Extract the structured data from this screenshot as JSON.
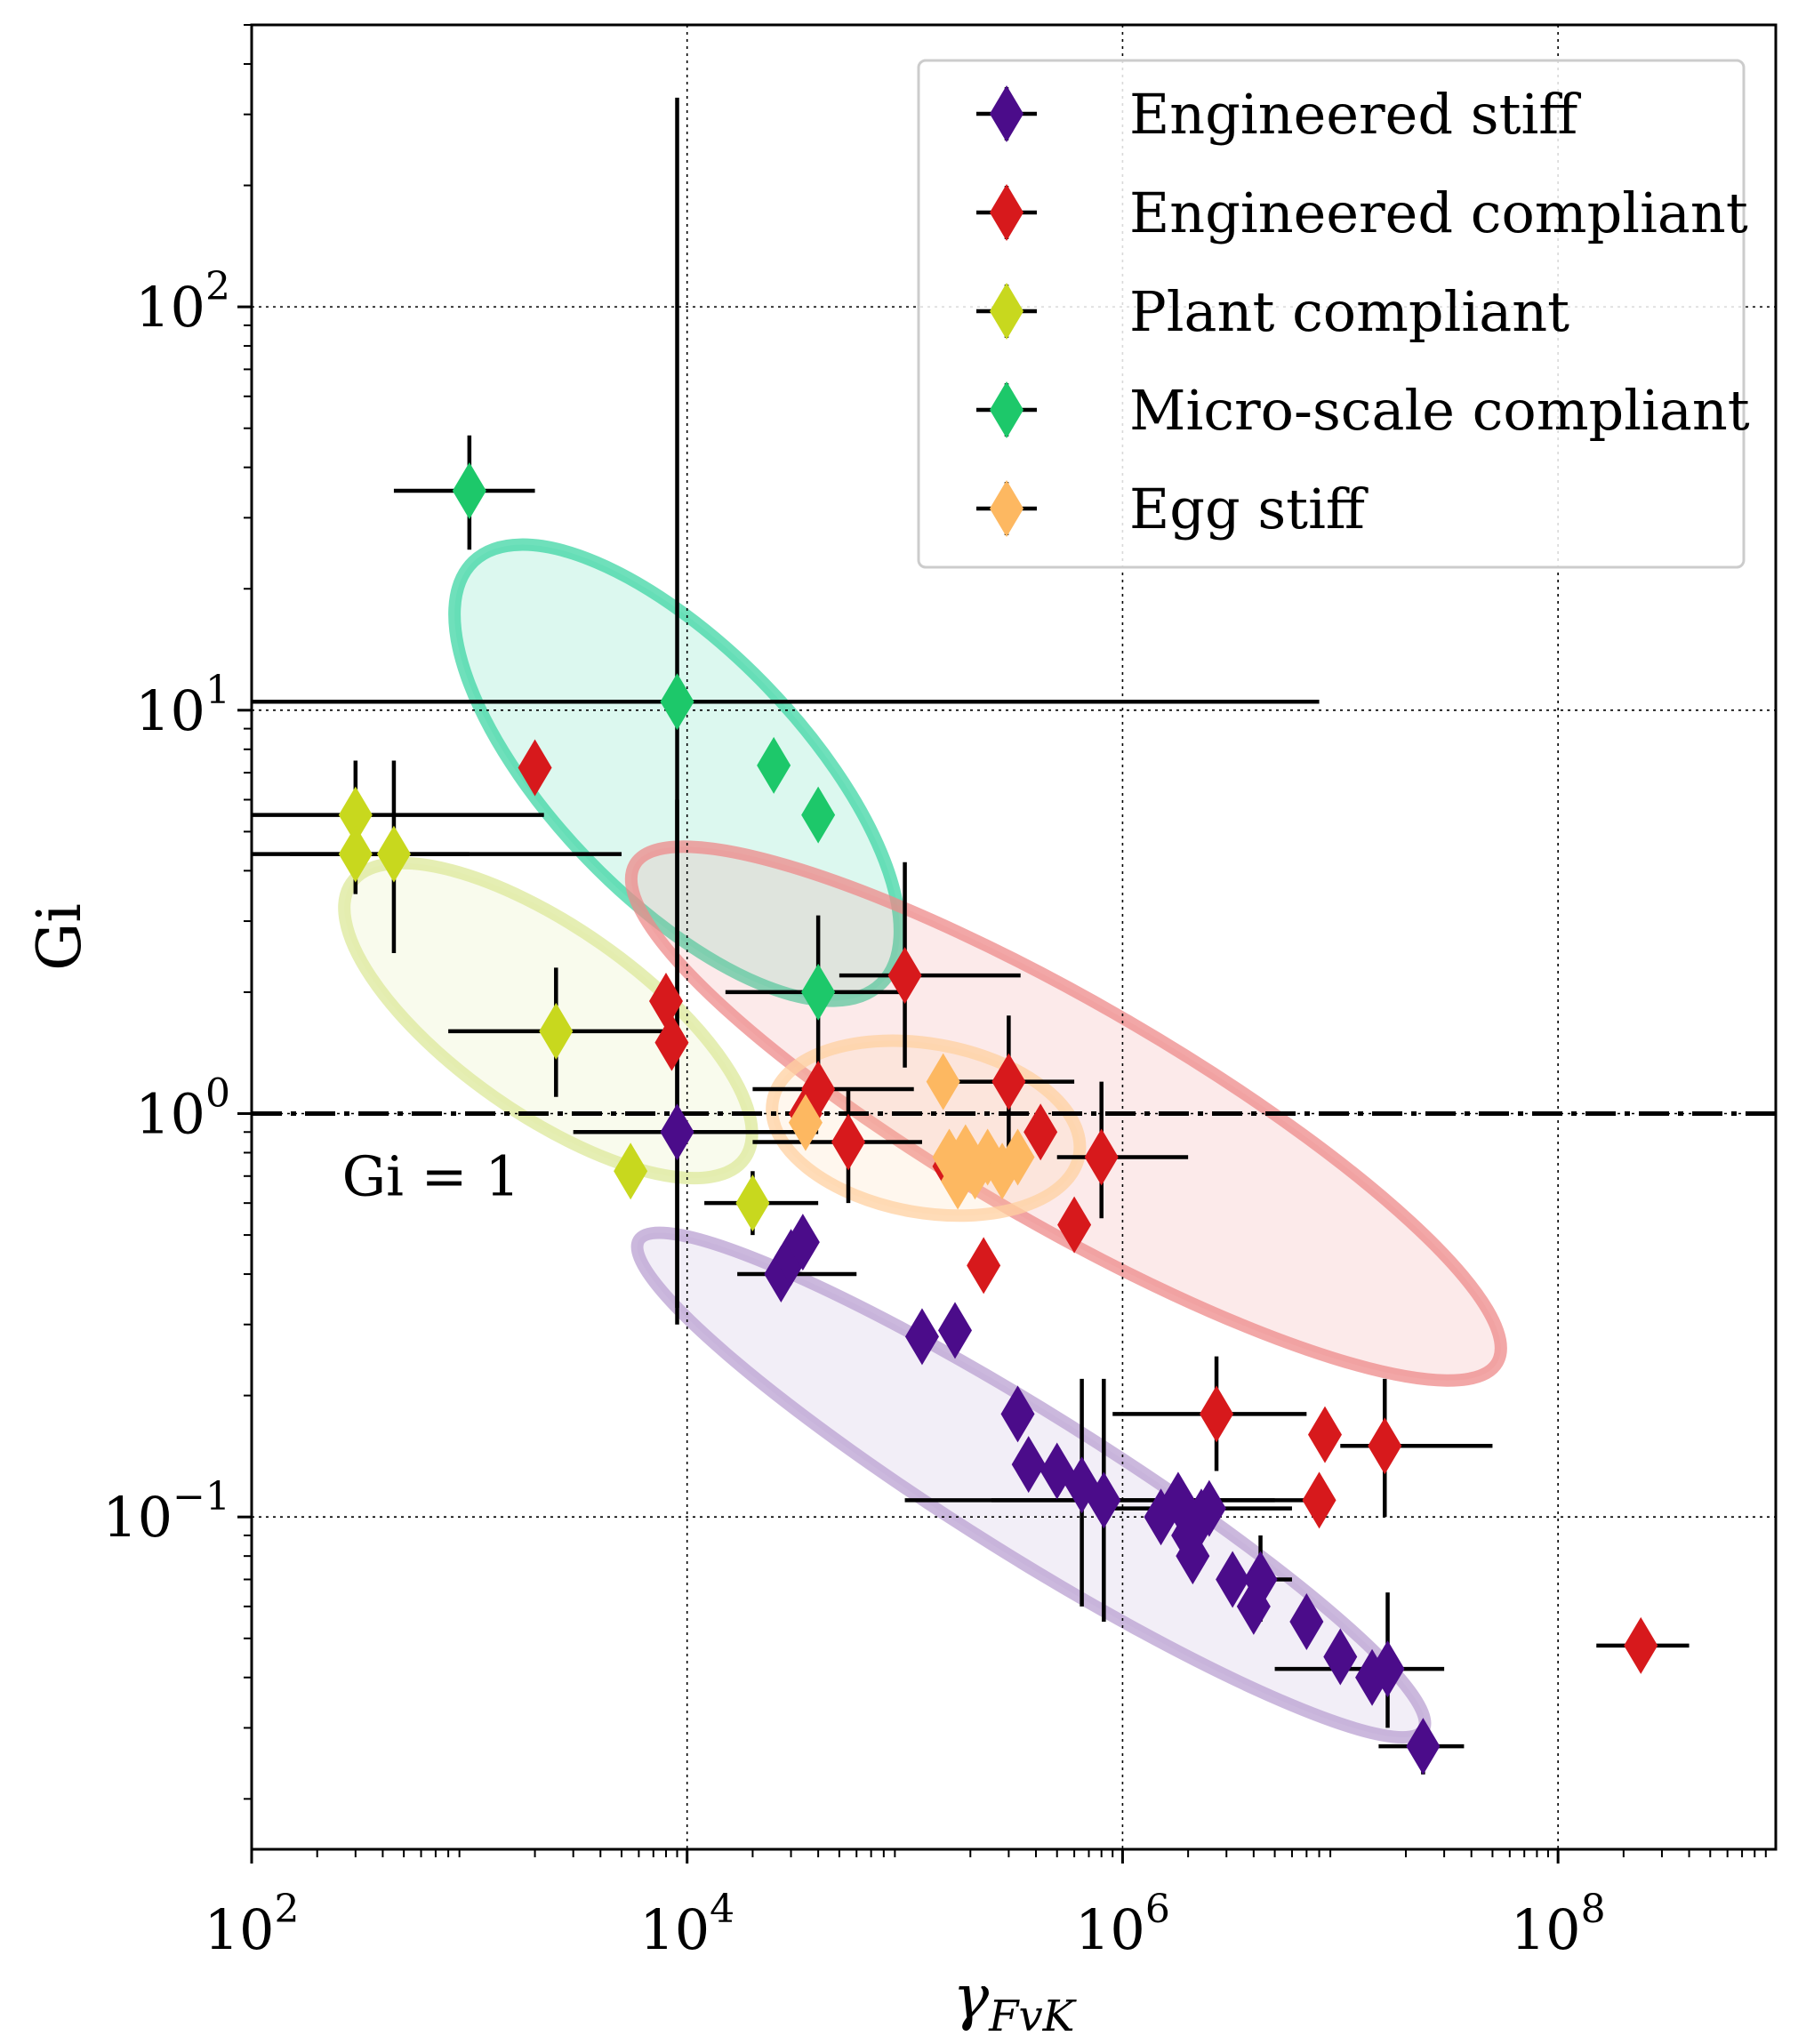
{
  "chart_data": {
    "type": "scatter",
    "title": "",
    "xlabel": "γ_FvK",
    "ylabel": "Gi",
    "xscale": "log",
    "yscale": "log",
    "xlim": [
      100,
      1000000000
    ],
    "ylim": [
      0.015,
      500
    ],
    "grid": "dotted at major decades",
    "x_ticks": [
      {
        "value": 100,
        "base": "10",
        "exp": "2"
      },
      {
        "value": 10000,
        "base": "10",
        "exp": "4"
      },
      {
        "value": 1000000,
        "base": "10",
        "exp": "6"
      },
      {
        "value": 100000000,
        "base": "10",
        "exp": "8"
      }
    ],
    "y_ticks": [
      {
        "value": 0.1,
        "base": "10",
        "exp": "−1"
      },
      {
        "value": 1,
        "base": "10",
        "exp": "0"
      },
      {
        "value": 10,
        "base": "10",
        "exp": "1"
      },
      {
        "value": 100,
        "base": "10",
        "exp": "2"
      }
    ],
    "reference_line": {
      "y": 1,
      "style": "dash-dot",
      "label": "Gi = 1"
    },
    "legend_position": "top-right",
    "series": [
      {
        "name": "Engineered stiff",
        "color": "#4B0C8A",
        "points": [
          {
            "x": 9000,
            "y": 0.9,
            "xerr": [
              3000,
              40000
            ],
            "yerr": [
              0.3,
              6
            ]
          },
          {
            "x": 27000,
            "y": 0.4,
            "xerr": [
              17000,
              60000
            ]
          },
          {
            "x": 30000,
            "y": 0.44
          },
          {
            "x": 34000,
            "y": 0.48
          },
          {
            "x": 120000,
            "y": 0.28
          },
          {
            "x": 170000,
            "y": 0.29
          },
          {
            "x": 330000,
            "y": 0.18
          },
          {
            "x": 370000,
            "y": 0.135
          },
          {
            "x": 500000,
            "y": 0.13
          },
          {
            "x": 650000,
            "y": 0.12,
            "yerr": [
              0.06,
              0.22
            ]
          },
          {
            "x": 820000,
            "y": 0.11,
            "xerr": [
              100000,
              5000000
            ],
            "yerr": [
              0.055,
              0.22
            ]
          },
          {
            "x": 1500000,
            "y": 0.1
          },
          {
            "x": 1800000,
            "y": 0.11,
            "xerr": [
              250000,
              8000000
            ]
          },
          {
            "x": 2000000,
            "y": 0.09
          },
          {
            "x": 2300000,
            "y": 0.1
          },
          {
            "x": 2500000,
            "y": 0.105,
            "xerr": [
              800000,
              6000000
            ]
          },
          {
            "x": 2100000,
            "y": 0.08
          },
          {
            "x": 3200000,
            "y": 0.07
          },
          {
            "x": 4000000,
            "y": 0.06
          },
          {
            "x": 4300000,
            "y": 0.07,
            "xerr": [
              3000000,
              6000000
            ],
            "yerr": [
              0.055,
              0.09
            ]
          },
          {
            "x": 7000000,
            "y": 0.055
          },
          {
            "x": 10000000,
            "y": 0.045
          },
          {
            "x": 14000000,
            "y": 0.04
          },
          {
            "x": 16500000,
            "y": 0.042,
            "xerr": [
              5000000,
              30000000
            ],
            "yerr": [
              0.03,
              0.065
            ]
          },
          {
            "x": 24000000,
            "y": 0.027,
            "xerr": [
              15000000,
              37000000
            ],
            "yerr": [
              0.023,
              0.031
            ]
          }
        ]
      },
      {
        "name": "Engineered compliant",
        "color": "#D7191C",
        "points": [
          {
            "x": 2000,
            "y": 7.2
          },
          {
            "x": 8000,
            "y": 1.9
          },
          {
            "x": 8500,
            "y": 1.5
          },
          {
            "x": 35000,
            "y": 1.0
          },
          {
            "x": 40000,
            "y": 1.15,
            "xerr": [
              20000,
              110000
            ]
          },
          {
            "x": 55000,
            "y": 0.85,
            "xerr": [
              20000,
              120000
            ],
            "yerr": [
              0.6,
              1.15
            ]
          },
          {
            "x": 100000,
            "y": 2.2,
            "xerr": [
              50000,
              340000
            ],
            "yerr": [
              1.3,
              4.2
            ]
          },
          {
            "x": 160000,
            "y": 0.74
          },
          {
            "x": 230000,
            "y": 0.42
          },
          {
            "x": 300000,
            "y": 1.2,
            "xerr": [
              150000,
              600000
            ],
            "yerr": [
              0.8,
              1.75
            ]
          },
          {
            "x": 420000,
            "y": 0.9
          },
          {
            "x": 600000,
            "y": 0.53
          },
          {
            "x": 800000,
            "y": 0.78,
            "xerr": [
              500000,
              2000000
            ],
            "yerr": [
              0.55,
              1.2
            ]
          },
          {
            "x": 2700000,
            "y": 0.18,
            "xerr": [
              900000,
              7000000
            ],
            "yerr": [
              0.13,
              0.25
            ]
          },
          {
            "x": 8000000,
            "y": 0.11
          },
          {
            "x": 8500000,
            "y": 0.16
          },
          {
            "x": 16000000,
            "y": 0.15,
            "xerr": [
              10000000,
              50000000
            ],
            "yerr": [
              0.1,
              0.22
            ]
          },
          {
            "x": 240000000,
            "y": 0.048,
            "xerr": [
              150000000,
              400000000
            ]
          }
        ]
      },
      {
        "name": "Plant compliant",
        "color": "#C8D81E",
        "points": [
          {
            "x": 300,
            "y": 5.5,
            "xerr": [
              100,
              2200
            ],
            "yerr": [
              3.5,
              7.5
            ]
          },
          {
            "x": 300,
            "y": 4.4,
            "xerr": [
              100,
              5000
            ]
          },
          {
            "x": 450,
            "y": 4.4,
            "xerr": [
              150,
              1000
            ],
            "yerr": [
              2.5,
              7.5
            ]
          },
          {
            "x": 2500,
            "y": 1.6,
            "xerr": [
              800,
              9000
            ],
            "yerr": [
              1.1,
              2.3
            ]
          },
          {
            "x": 5500,
            "y": 0.72
          },
          {
            "x": 20000,
            "y": 0.6,
            "xerr": [
              12000,
              40000
            ],
            "yerr": [
              0.5,
              0.72
            ]
          }
        ]
      },
      {
        "name": "Micro-scale compliant",
        "color": "#1DC86A",
        "points": [
          {
            "x": 1000,
            "y": 35,
            "xerr": [
              450,
              2000
            ],
            "yerr": [
              25,
              48
            ]
          },
          {
            "x": 9000,
            "y": 10.5,
            "xerr": [
              100,
              8000000
            ],
            "yerr": [
              0.33,
              330
            ]
          },
          {
            "x": 25000,
            "y": 7.3
          },
          {
            "x": 40000,
            "y": 5.5
          },
          {
            "x": 40000,
            "y": 2.0,
            "xerr": [
              15000,
              100000
            ],
            "yerr": [
              1.25,
              3.1
            ]
          }
        ]
      },
      {
        "name": "Egg stiff",
        "color": "#FDB861",
        "points": [
          {
            "x": 35000,
            "y": 0.95
          },
          {
            "x": 150000,
            "y": 1.2
          },
          {
            "x": 160000,
            "y": 0.78
          },
          {
            "x": 175000,
            "y": 0.68
          },
          {
            "x": 190000,
            "y": 0.8
          },
          {
            "x": 210000,
            "y": 0.72
          },
          {
            "x": 240000,
            "y": 0.78
          },
          {
            "x": 280000,
            "y": 0.72
          },
          {
            "x": 330000,
            "y": 0.78
          }
        ]
      }
    ],
    "regions": [
      {
        "name": "Micro-scale compliant region",
        "color": "#3FD6A4",
        "center": [
          9000,
          7
        ],
        "angle_deg": 46,
        "rx": 330,
        "ry": 140
      },
      {
        "name": "Engineered compliant region",
        "color": "#EE8A8A",
        "center": [
          550000,
          1.0
        ],
        "angle_deg": 30,
        "rx": 560,
        "ry": 125
      },
      {
        "name": "Plant compliant region",
        "color": "#DCE89A",
        "center": [
          2300,
          1.7
        ],
        "angle_deg": 35,
        "rx": 270,
        "ry": 105
      },
      {
        "name": "Engineered stiff region",
        "color": "#B9A0D2",
        "center": [
          380000,
          0.12
        ],
        "angle_deg": 32,
        "rx": 520,
        "ry": 80
      },
      {
        "name": "Egg stiff region",
        "color": "#FFD0A0",
        "center": [
          125000,
          0.92
        ],
        "angle_deg": 10,
        "rx": 175,
        "ry": 95
      }
    ]
  }
}
